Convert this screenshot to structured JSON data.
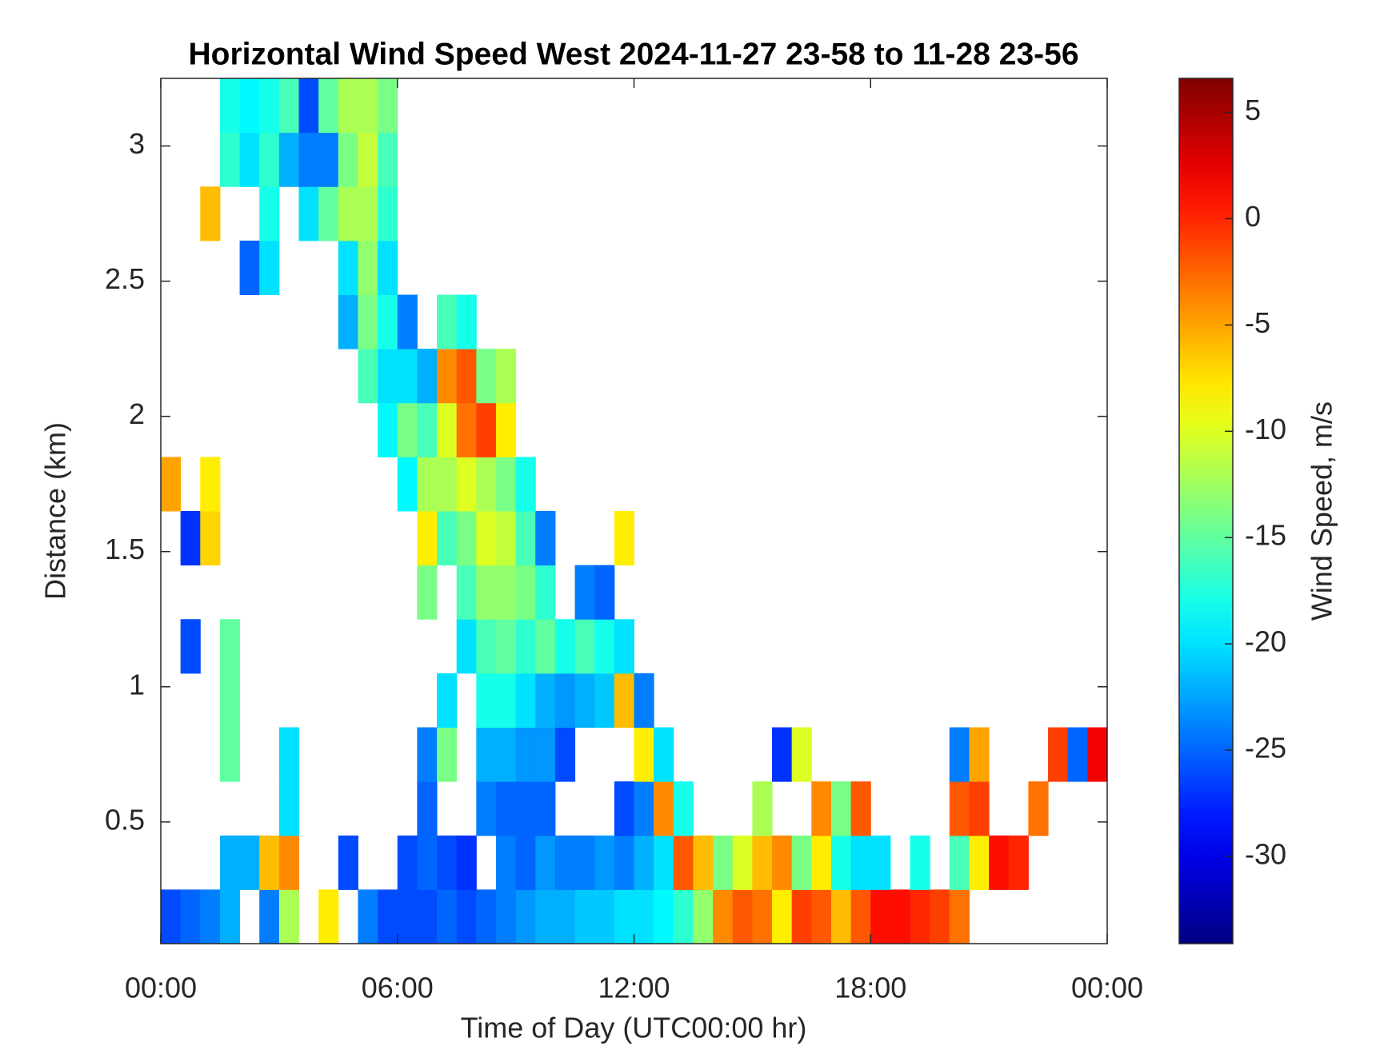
{
  "chart_data": {
    "type": "heatmap",
    "title": "Horizontal Wind Speed West 2024-11-27 23-58 to 11-28 23-56",
    "xlabel": "Time of Day (UTC00:00 hr)",
    "ylabel": "Distance (km)",
    "colorbar_label": "Wind Speed, m/s",
    "colormap": "jet",
    "xlim": [
      0,
      24
    ],
    "xticks": [
      {
        "value": 0,
        "label": "00:00"
      },
      {
        "value": 6,
        "label": "06:00"
      },
      {
        "value": 12,
        "label": "12:00"
      },
      {
        "value": 18,
        "label": "18:00"
      },
      {
        "value": 24,
        "label": "00:00"
      }
    ],
    "ylim": [
      0.05,
      3.25
    ],
    "yticks": [
      0.5,
      1,
      1.5,
      2,
      2.5,
      3
    ],
    "clim": [
      -34.1,
      6.6
    ],
    "cticks": [
      -30,
      -25,
      -20,
      -15,
      -10,
      -5,
      0,
      5
    ],
    "x": [
      0.25,
      0.75,
      1.25,
      1.75,
      2.25,
      2.75,
      3.25,
      3.75,
      4.25,
      4.75,
      5.25,
      5.75,
      6.25,
      6.75,
      7.25,
      7.75,
      8.25,
      8.75,
      9.25,
      9.75,
      10.25,
      10.75,
      11.25,
      11.75,
      12.25,
      12.75,
      13.25,
      13.75,
      14.25,
      14.75,
      15.25,
      15.75,
      16.25,
      16.75,
      17.25,
      17.75,
      18.25,
      18.75,
      19.25,
      19.75,
      20.25,
      20.75,
      21.25,
      21.75,
      22.25,
      22.75,
      23.25,
      23.75
    ],
    "y": [
      0.15,
      0.35,
      0.55,
      0.75,
      0.95,
      1.15,
      1.35,
      1.55,
      1.75,
      1.95,
      2.15,
      2.35,
      2.55,
      2.75,
      2.95,
      3.15
    ],
    "z": [
      [
        -26,
        -25,
        -24,
        -22,
        null,
        -24,
        -12,
        null,
        -8,
        null,
        -24,
        -26,
        -26,
        -26,
        -25,
        -26,
        -25,
        -24,
        -23,
        -22,
        -22,
        -21,
        -21,
        -20,
        -20,
        -19,
        -17,
        -13,
        -4,
        -2,
        -3,
        -8,
        -1,
        -2,
        -6,
        -2,
        1,
        1,
        0,
        -1,
        -3,
        null,
        null,
        null,
        null,
        null,
        null,
        null
      ],
      [
        null,
        null,
        null,
        -22,
        -22,
        -6,
        -4,
        null,
        null,
        -26,
        null,
        null,
        -26,
        -25,
        -26,
        -27,
        null,
        -24,
        -25,
        -23,
        -24,
        -24,
        -23,
        -24,
        -22,
        -20,
        -2,
        -6,
        -14,
        -10,
        -6,
        -4,
        -14,
        -8,
        -18,
        -20,
        -20,
        null,
        -18,
        null,
        -16,
        -8,
        1,
        0,
        null,
        null,
        null,
        null
      ],
      [
        null,
        null,
        null,
        null,
        null,
        null,
        -20,
        null,
        null,
        null,
        null,
        null,
        null,
        -25,
        null,
        null,
        -24,
        -25,
        -25,
        -25,
        null,
        null,
        null,
        -26,
        -24,
        -4,
        -18,
        null,
        null,
        null,
        -12,
        null,
        null,
        -4,
        -14,
        -2,
        null,
        null,
        null,
        null,
        -2,
        -1,
        null,
        null,
        -3,
        null,
        null,
        null
      ],
      [
        null,
        null,
        null,
        -15,
        null,
        null,
        -20,
        null,
        null,
        null,
        null,
        null,
        null,
        -24,
        -14,
        null,
        -22,
        -22,
        -23,
        -23,
        -26,
        null,
        null,
        null,
        -8,
        -20,
        null,
        null,
        null,
        null,
        null,
        -27,
        -10,
        null,
        null,
        null,
        null,
        null,
        null,
        null,
        -24,
        -5,
        null,
        null,
        null,
        -1,
        -25,
        2
      ],
      [
        null,
        null,
        null,
        -15,
        null,
        null,
        null,
        null,
        null,
        null,
        null,
        null,
        null,
        null,
        -20,
        null,
        -18,
        -18,
        -20,
        -22,
        -23,
        -22,
        -21,
        -6,
        -24,
        null,
        null,
        null,
        null,
        null,
        null,
        null,
        null,
        null,
        null,
        null,
        null,
        null,
        null,
        null,
        null,
        null,
        null,
        null,
        null,
        null,
        null,
        null
      ],
      [
        null,
        -26,
        null,
        -15,
        null,
        null,
        null,
        null,
        null,
        null,
        null,
        null,
        null,
        null,
        null,
        -20,
        -16,
        -15,
        -17,
        -15,
        -18,
        -16,
        -18,
        -20,
        null,
        null,
        null,
        null,
        null,
        null,
        null,
        null,
        null,
        null,
        null,
        null,
        null,
        null,
        null,
        null,
        null,
        null,
        null,
        null,
        null,
        null,
        null,
        null
      ],
      [
        null,
        null,
        null,
        null,
        null,
        null,
        null,
        null,
        null,
        null,
        null,
        null,
        null,
        -14,
        null,
        -16,
        -13,
        -13,
        -14,
        -17,
        null,
        -24,
        -25,
        null,
        null,
        null,
        null,
        null,
        null,
        null,
        null,
        null,
        null,
        null,
        null,
        null,
        null,
        null,
        null,
        null,
        null,
        null,
        null,
        null,
        null,
        null,
        null,
        null
      ],
      [
        null,
        -27,
        -7,
        null,
        null,
        null,
        null,
        null,
        null,
        null,
        null,
        null,
        null,
        -8,
        -16,
        -14,
        -10,
        -11,
        -16,
        -24,
        null,
        null,
        null,
        -8,
        null,
        null,
        null,
        null,
        null,
        null,
        null,
        null,
        null,
        null,
        null,
        null,
        null,
        null,
        null,
        null,
        null,
        null,
        null,
        null,
        null,
        null,
        null,
        null
      ],
      [
        -5,
        null,
        -8,
        null,
        null,
        null,
        null,
        null,
        null,
        null,
        null,
        null,
        -19,
        -12,
        -12,
        -10,
        -12,
        -14,
        -18,
        null,
        null,
        null,
        null,
        null,
        null,
        null,
        null,
        null,
        null,
        null,
        null,
        null,
        null,
        null,
        null,
        null,
        null,
        null,
        null,
        null,
        null,
        null,
        null,
        null,
        null,
        null,
        null,
        null
      ],
      [
        null,
        null,
        null,
        null,
        null,
        null,
        null,
        null,
        null,
        null,
        null,
        -19,
        -14,
        -16,
        -10,
        -3,
        -1,
        -8,
        null,
        null,
        null,
        null,
        null,
        null,
        null,
        null,
        null,
        null,
        null,
        null,
        null,
        null,
        null,
        null,
        null,
        null,
        null,
        null,
        null,
        null,
        null,
        null,
        null,
        null,
        null,
        null,
        null,
        null
      ],
      [
        null,
        null,
        null,
        null,
        null,
        null,
        null,
        null,
        null,
        null,
        -16,
        -20,
        -20,
        -22,
        -4,
        -2,
        -14,
        -12,
        null,
        null,
        null,
        null,
        null,
        null,
        null,
        null,
        null,
        null,
        null,
        null,
        null,
        null,
        null,
        null,
        null,
        null,
        null,
        null,
        null,
        null,
        null,
        null,
        null,
        null,
        null,
        null,
        null,
        null
      ],
      [
        null,
        null,
        null,
        null,
        null,
        null,
        null,
        null,
        null,
        -22,
        -14,
        -18,
        -24,
        null,
        -16,
        -18,
        null,
        null,
        null,
        null,
        null,
        null,
        null,
        null,
        null,
        null,
        null,
        null,
        null,
        null,
        null,
        null,
        null,
        null,
        null,
        null,
        null,
        null,
        null,
        null,
        null,
        null,
        null,
        null,
        null,
        null,
        null,
        null
      ],
      [
        null,
        null,
        null,
        null,
        -25,
        -20,
        null,
        null,
        null,
        -20,
        -13,
        -20,
        null,
        null,
        null,
        null,
        null,
        null,
        null,
        null,
        null,
        null,
        null,
        null,
        null,
        null,
        null,
        null,
        null,
        null,
        null,
        null,
        null,
        null,
        null,
        null,
        null,
        null,
        null,
        null,
        null,
        null,
        null,
        null,
        null,
        null,
        null,
        null
      ],
      [
        null,
        null,
        -6,
        null,
        null,
        -18,
        null,
        -20,
        -15,
        -12,
        -12,
        -17,
        null,
        null,
        null,
        null,
        null,
        null,
        null,
        null,
        null,
        null,
        null,
        null,
        null,
        null,
        null,
        null,
        null,
        null,
        null,
        null,
        null,
        null,
        null,
        null,
        null,
        null,
        null,
        null,
        null,
        null,
        null,
        null,
        null,
        null,
        null,
        null
      ],
      [
        null,
        null,
        null,
        -17,
        -20,
        -17,
        -22,
        -24,
        -24,
        -14,
        -11,
        -16,
        null,
        null,
        null,
        null,
        null,
        null,
        null,
        null,
        null,
        null,
        null,
        null,
        null,
        null,
        null,
        null,
        null,
        null,
        null,
        null,
        null,
        null,
        null,
        null,
        null,
        null,
        null,
        null,
        null,
        null,
        null,
        null,
        null,
        null,
        null,
        null
      ],
      [
        null,
        null,
        null,
        -18,
        -19,
        -18,
        -16,
        -26,
        -15,
        -12,
        -12,
        -14,
        null,
        null,
        null,
        null,
        null,
        null,
        null,
        null,
        null,
        null,
        null,
        null,
        null,
        null,
        null,
        null,
        null,
        null,
        null,
        null,
        null,
        null,
        null,
        null,
        null,
        null,
        null,
        null,
        null,
        null,
        null,
        null,
        null,
        null,
        null,
        null
      ]
    ]
  }
}
